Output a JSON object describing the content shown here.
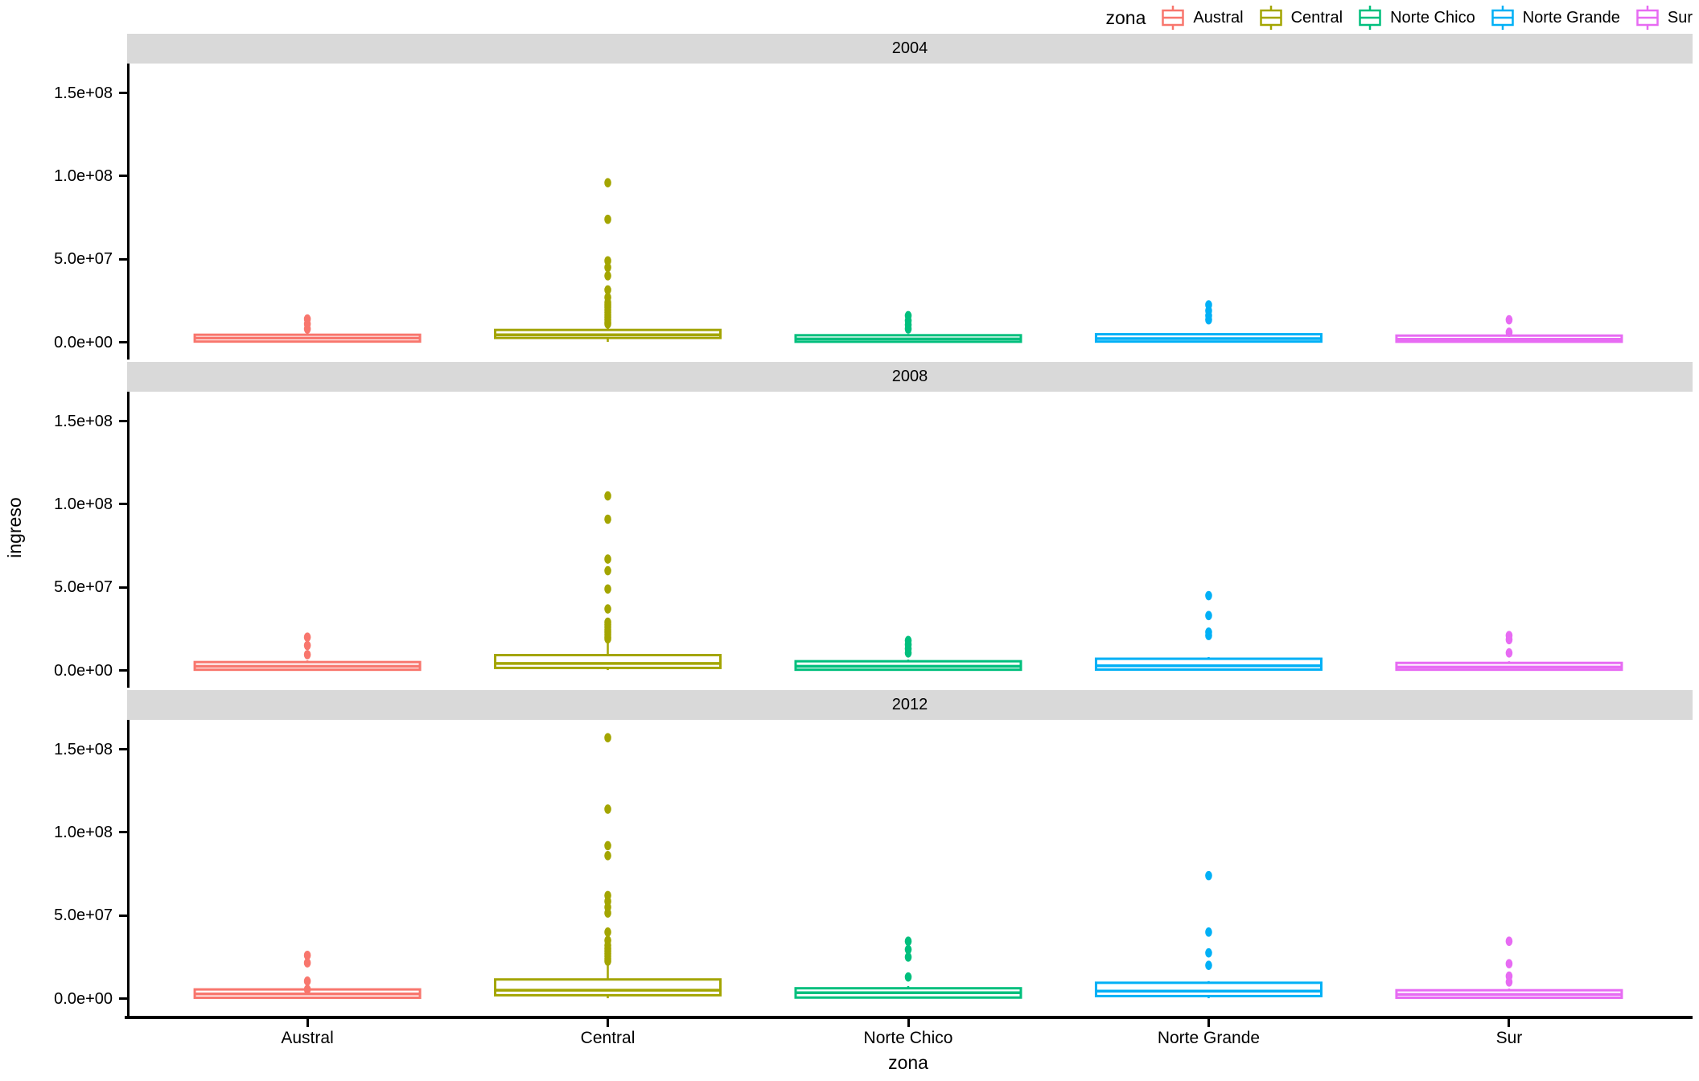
{
  "legend": {
    "title": "zona",
    "items": [
      {
        "label": "Austral",
        "color": "#F8766D"
      },
      {
        "label": "Central",
        "color": "#A3A500"
      },
      {
        "label": "Norte Chico",
        "color": "#00BF7D"
      },
      {
        "label": "Norte Grande",
        "color": "#00B0F6"
      },
      {
        "label": "Sur",
        "color": "#E76BF3"
      }
    ]
  },
  "axes": {
    "y_title": "ingreso",
    "x_title": "zona",
    "y_tick_labels": [
      "1.5e+08",
      "1.0e+08",
      "5.0e+07",
      "0.0e+00"
    ],
    "x_categories": [
      "Austral",
      "Central",
      "Norte Chico",
      "Norte Grande",
      "Sur"
    ]
  },
  "facets": [
    {
      "label": "2004"
    },
    {
      "label": "2008"
    },
    {
      "label": "2012"
    }
  ],
  "chart_data": {
    "type": "boxplot",
    "facet_variable": "year",
    "x_variable": "zona",
    "y_variable": "ingreso",
    "legend_position": "top-right",
    "grid": false,
    "y_range": [
      0,
      168000000
    ],
    "y_tick_values": [
      150000000,
      100000000,
      50000000,
      0
    ],
    "categories": [
      "Austral",
      "Central",
      "Norte Chico",
      "Norte Grande",
      "Sur"
    ],
    "colors": {
      "Austral": "#F8766D",
      "Central": "#A3A500",
      "Norte Chico": "#00BF7D",
      "Norte Grande": "#00B0F6",
      "Sur": "#E76BF3"
    },
    "strip_color": "#D9D9D9",
    "facets": [
      {
        "year": "2004",
        "boxes": [
          {
            "zone": "Austral",
            "q1": 400000,
            "median": 2500000,
            "q3": 4500000,
            "whisker_low": 100000,
            "whisker_high": 5500000,
            "outliers": [
              14000000,
              11000000,
              8000000
            ]
          },
          {
            "zone": "Central",
            "q1": 2600000,
            "median": 4500000,
            "q3": 7400000,
            "whisker_low": 200000,
            "whisker_high": 9300000,
            "outliers": [
              96000000,
              74000000,
              49000000,
              45000000,
              40000000,
              31500000,
              27000000,
              24000000,
              22500000,
              21000000,
              19500000,
              18000000,
              16500000,
              15000000,
              13500000,
              12000000,
              11000000
            ]
          },
          {
            "zone": "Norte Chico",
            "q1": 300000,
            "median": 2000000,
            "q3": 4200000,
            "whisker_low": 100000,
            "whisker_high": 5000000,
            "outliers": [
              16000000,
              13000000,
              10500000,
              8000000
            ]
          },
          {
            "zone": "Norte Grande",
            "q1": 400000,
            "median": 2200000,
            "q3": 4800000,
            "whisker_low": 100000,
            "whisker_high": 5500000,
            "outliers": [
              22500000,
              19000000,
              16000000,
              13500000
            ]
          },
          {
            "zone": "Sur",
            "q1": 300000,
            "median": 1800000,
            "q3": 4000000,
            "whisker_low": 100000,
            "whisker_high": 4800000,
            "outliers": [
              13500000,
              6000000
            ]
          }
        ]
      },
      {
        "year": "2008",
        "boxes": [
          {
            "zone": "Austral",
            "q1": 400000,
            "median": 2500000,
            "q3": 5000000,
            "whisker_low": 100000,
            "whisker_high": 6000000,
            "outliers": [
              20000000,
              15000000,
              9500000
            ]
          },
          {
            "zone": "Central",
            "q1": 1500000,
            "median": 4200000,
            "q3": 9200000,
            "whisker_low": 200000,
            "whisker_high": 17800000,
            "outliers": [
              105000000,
              91000000,
              67000000,
              60000000,
              49000000,
              37000000,
              29000000,
              27500000,
              26000000,
              24500000,
              23000000,
              21500000,
              20000000,
              19000000
            ]
          },
          {
            "zone": "Norte Chico",
            "q1": 400000,
            "median": 2500000,
            "q3": 5500000,
            "whisker_low": 100000,
            "whisker_high": 6500000,
            "outliers": [
              18000000,
              15500000,
              13000000,
              10500000
            ]
          },
          {
            "zone": "Norte Grande",
            "q1": 500000,
            "median": 2800000,
            "q3": 7000000,
            "whisker_low": 100000,
            "whisker_high": 8000000,
            "outliers": [
              45000000,
              33000000,
              23000000,
              21000000
            ]
          },
          {
            "zone": "Sur",
            "q1": 400000,
            "median": 2000000,
            "q3": 4500000,
            "whisker_low": 100000,
            "whisker_high": 5500000,
            "outliers": [
              21000000,
              18500000,
              10500000
            ]
          }
        ]
      },
      {
        "year": "2012",
        "boxes": [
          {
            "zone": "Austral",
            "q1": 500000,
            "median": 2800000,
            "q3": 5500000,
            "whisker_low": 100000,
            "whisker_high": 6500000,
            "outliers": [
              26000000,
              21500000,
              10500000,
              5500000
            ]
          },
          {
            "zone": "Central",
            "q1": 2000000,
            "median": 5000000,
            "q3": 11500000,
            "whisker_low": 200000,
            "whisker_high": 20000000,
            "outliers": [
              157000000,
              114000000,
              92000000,
              86000000,
              62000000,
              58500000,
              55000000,
              51500000,
              40000000,
              35000000,
              32000000,
              30000000,
              28500000,
              27000000,
              25500000,
              24000000,
              22500000
            ]
          },
          {
            "zone": "Norte Chico",
            "q1": 600000,
            "median": 3500000,
            "q3": 6200000,
            "whisker_low": 100000,
            "whisker_high": 7500000,
            "outliers": [
              34500000,
              29500000,
              25000000,
              13000000
            ]
          },
          {
            "zone": "Norte Grande",
            "q1": 1500000,
            "median": 4500000,
            "q3": 9500000,
            "whisker_low": 200000,
            "whisker_high": 10500000,
            "outliers": [
              74000000,
              40000000,
              27500000,
              20000000
            ]
          },
          {
            "zone": "Sur",
            "q1": 500000,
            "median": 2500000,
            "q3": 5000000,
            "whisker_low": 100000,
            "whisker_high": 6000000,
            "outliers": [
              34500000,
              21000000,
              13500000,
              10000000
            ]
          }
        ]
      }
    ]
  }
}
